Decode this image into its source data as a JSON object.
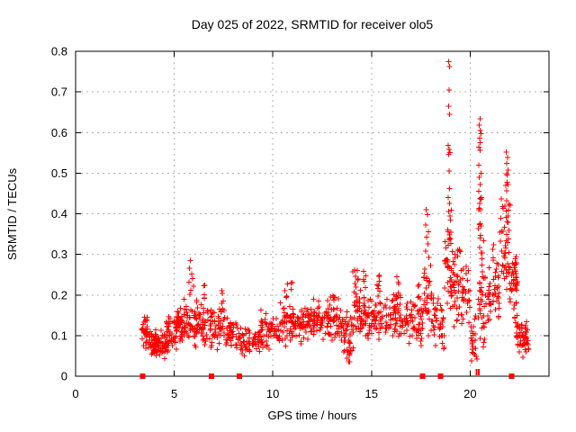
{
  "page": {
    "background": "#ffffff",
    "text_color": "#000000"
  },
  "chart_data": {
    "type": "scatter",
    "title": "Day 025 of 2022, SRMTID for receiver olo5",
    "xlabel": "GPS time / hours",
    "ylabel": "SRMTID / TECUs",
    "xlim": [
      0,
      24
    ],
    "ylim": [
      0,
      0.8
    ],
    "xtick_values": [
      0,
      5,
      10,
      15,
      20
    ],
    "xtick_labels": [
      "0",
      "5",
      "10",
      "15",
      "20"
    ],
    "ytick_values": [
      0,
      0.1,
      0.2,
      0.3,
      0.4,
      0.5,
      0.6,
      0.7,
      0.8
    ],
    "ytick_labels": [
      "0",
      "0.1",
      "0.2",
      "0.3",
      "0.4",
      "0.5",
      "0.6",
      "0.7",
      "0.8"
    ],
    "grid": true,
    "grid_style": "dashed",
    "legend": false,
    "x_data_range": [
      3.35,
      23.0
    ],
    "marker": "plus",
    "marker_color": "#ff0000",
    "grid_color": "#b0b0b0",
    "axis_color": "#000000",
    "series": [
      {
        "name": "srmtid-scatter",
        "marker": "plus",
        "color": "#ff0000",
        "clusters": [
          [
            3.35,
            3.65,
            22,
            0.06,
            0.15
          ],
          [
            3.55,
            4.1,
            48,
            0.05,
            0.125
          ],
          [
            4.0,
            4.65,
            52,
            0.04,
            0.115
          ],
          [
            4.6,
            5.15,
            45,
            0.055,
            0.155
          ],
          [
            5.1,
            5.5,
            40,
            0.07,
            0.175
          ],
          [
            5.5,
            6.15,
            48,
            0.07,
            0.195
          ],
          [
            6.15,
            6.75,
            40,
            0.07,
            0.185
          ],
          [
            6.5,
            6.65,
            5,
            0.18,
            0.225,
            1
          ],
          [
            6.75,
            7.65,
            55,
            0.06,
            0.175
          ],
          [
            7.4,
            7.6,
            5,
            0.16,
            0.22,
            1
          ],
          [
            7.65,
            8.35,
            42,
            0.055,
            0.155
          ],
          [
            8.35,
            9.35,
            55,
            0.045,
            0.125
          ],
          [
            9.35,
            10.35,
            60,
            0.06,
            0.165
          ],
          [
            10.35,
            11.15,
            55,
            0.07,
            0.19
          ],
          [
            10.6,
            11.0,
            8,
            0.18,
            0.235,
            1
          ],
          [
            11.15,
            12.05,
            58,
            0.075,
            0.185
          ],
          [
            12.05,
            12.75,
            45,
            0.08,
            0.19
          ],
          [
            12.75,
            13.4,
            45,
            0.08,
            0.205
          ],
          [
            12.85,
            13.2,
            6,
            0.18,
            0.21,
            1
          ],
          [
            13.4,
            14.1,
            45,
            0.05,
            0.185
          ],
          [
            13.7,
            13.95,
            8,
            0.035,
            0.08,
            1
          ],
          [
            14.1,
            14.8,
            50,
            0.09,
            0.215
          ],
          [
            14.05,
            14.35,
            9,
            0.2,
            0.265,
            1
          ],
          [
            14.55,
            14.75,
            5,
            0.21,
            0.26,
            1
          ],
          [
            14.8,
            15.7,
            55,
            0.08,
            0.21
          ],
          [
            15.25,
            15.5,
            6,
            0.2,
            0.26,
            1
          ],
          [
            15.7,
            16.7,
            60,
            0.08,
            0.21
          ],
          [
            16.25,
            16.5,
            6,
            0.19,
            0.25,
            1
          ],
          [
            16.7,
            17.6,
            55,
            0.07,
            0.2
          ],
          [
            17.25,
            17.5,
            5,
            0.19,
            0.24,
            1
          ],
          [
            17.6,
            18.1,
            35,
            0.09,
            0.28
          ],
          [
            18.1,
            18.7,
            38,
            0.05,
            0.22
          ],
          [
            18.7,
            19.2,
            45,
            0.1,
            0.35
          ],
          [
            18.85,
            19.05,
            6,
            0.32,
            0.42,
            1
          ],
          [
            19.2,
            20.0,
            50,
            0.1,
            0.3
          ],
          [
            19.2,
            19.6,
            6,
            0.28,
            0.33,
            1
          ],
          [
            20.0,
            20.4,
            22,
            0.02,
            0.15
          ],
          [
            20.4,
            20.8,
            40,
            0.05,
            0.35
          ],
          [
            20.42,
            20.62,
            10,
            0.33,
            0.46,
            1
          ],
          [
            20.8,
            21.5,
            45,
            0.1,
            0.3
          ],
          [
            21.0,
            21.2,
            4,
            0.28,
            0.34,
            1
          ],
          [
            21.5,
            22.05,
            40,
            0.16,
            0.48
          ],
          [
            21.8,
            22.0,
            10,
            0.3,
            0.5,
            1
          ],
          [
            21.95,
            22.4,
            45,
            0.12,
            0.32
          ],
          [
            22.35,
            23.0,
            55,
            0.04,
            0.14
          ]
        ],
        "points": [
          [
            3.5,
            0.145
          ],
          [
            3.55,
            0.14
          ],
          [
            5.82,
            0.285
          ],
          [
            5.78,
            0.266
          ],
          [
            5.88,
            0.252
          ],
          [
            5.93,
            0.24
          ],
          [
            5.74,
            0.232
          ],
          [
            5.98,
            0.222
          ],
          [
            5.85,
            0.212
          ],
          [
            5.8,
            0.202
          ],
          [
            17.78,
            0.41
          ],
          [
            17.84,
            0.398
          ],
          [
            17.74,
            0.372
          ],
          [
            17.88,
            0.356
          ],
          [
            17.8,
            0.342
          ],
          [
            17.86,
            0.326
          ],
          [
            17.76,
            0.308
          ],
          [
            17.9,
            0.292
          ],
          [
            18.92,
            0.775
          ],
          [
            18.96,
            0.762
          ],
          [
            18.94,
            0.705
          ],
          [
            18.92,
            0.665
          ],
          [
            18.95,
            0.645
          ],
          [
            18.9,
            0.568
          ],
          [
            18.94,
            0.558
          ],
          [
            18.97,
            0.551
          ],
          [
            18.92,
            0.546
          ],
          [
            18.93,
            0.505
          ],
          [
            18.95,
            0.462
          ],
          [
            18.9,
            0.44
          ],
          [
            18.96,
            0.425
          ],
          [
            18.91,
            0.405
          ],
          [
            18.97,
            0.395
          ],
          [
            20.5,
            0.634
          ],
          [
            20.46,
            0.618
          ],
          [
            20.51,
            0.605
          ],
          [
            20.55,
            0.597
          ],
          [
            20.48,
            0.586
          ],
          [
            20.52,
            0.575
          ],
          [
            20.45,
            0.564
          ],
          [
            20.5,
            0.556
          ],
          [
            20.43,
            0.52
          ],
          [
            20.55,
            0.5
          ],
          [
            20.47,
            0.49
          ],
          [
            20.52,
            0.472
          ],
          [
            20.44,
            0.455
          ],
          [
            20.57,
            0.44
          ],
          [
            20.49,
            0.425
          ],
          [
            20.54,
            0.41
          ],
          [
            21.84,
            0.552
          ],
          [
            21.9,
            0.539
          ],
          [
            21.86,
            0.524
          ],
          [
            21.92,
            0.508
          ],
          [
            21.88,
            0.495
          ]
        ]
      },
      {
        "name": "baseline-event-squares",
        "marker": "filled-square",
        "color": "#ff0000",
        "y": 0,
        "x": [
          3.4,
          6.9,
          8.3,
          17.6,
          18.5,
          22.1
        ]
      },
      {
        "name": "baseline-event-bars",
        "marker": "vertical-bar",
        "color": "#ff0000",
        "y": 0,
        "x": [
          20.33,
          20.45
        ]
      }
    ]
  }
}
